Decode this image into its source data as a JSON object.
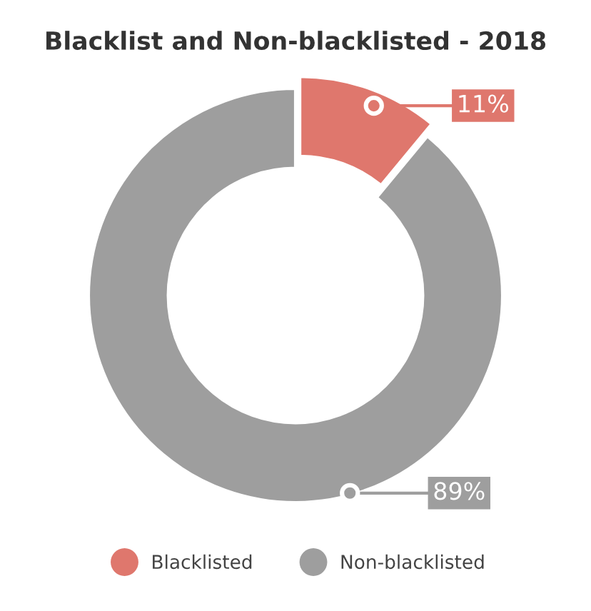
{
  "chart_data": {
    "type": "donut",
    "title": "Blacklist and Non-blacklisted - 2018",
    "categories": [
      "Blacklisted",
      "Non-blacklisted"
    ],
    "values": [
      11,
      89
    ],
    "colors": [
      "#df776d",
      "#9e9e9e"
    ],
    "value_labels": [
      "11%",
      "89%"
    ],
    "legend": "bottom"
  }
}
